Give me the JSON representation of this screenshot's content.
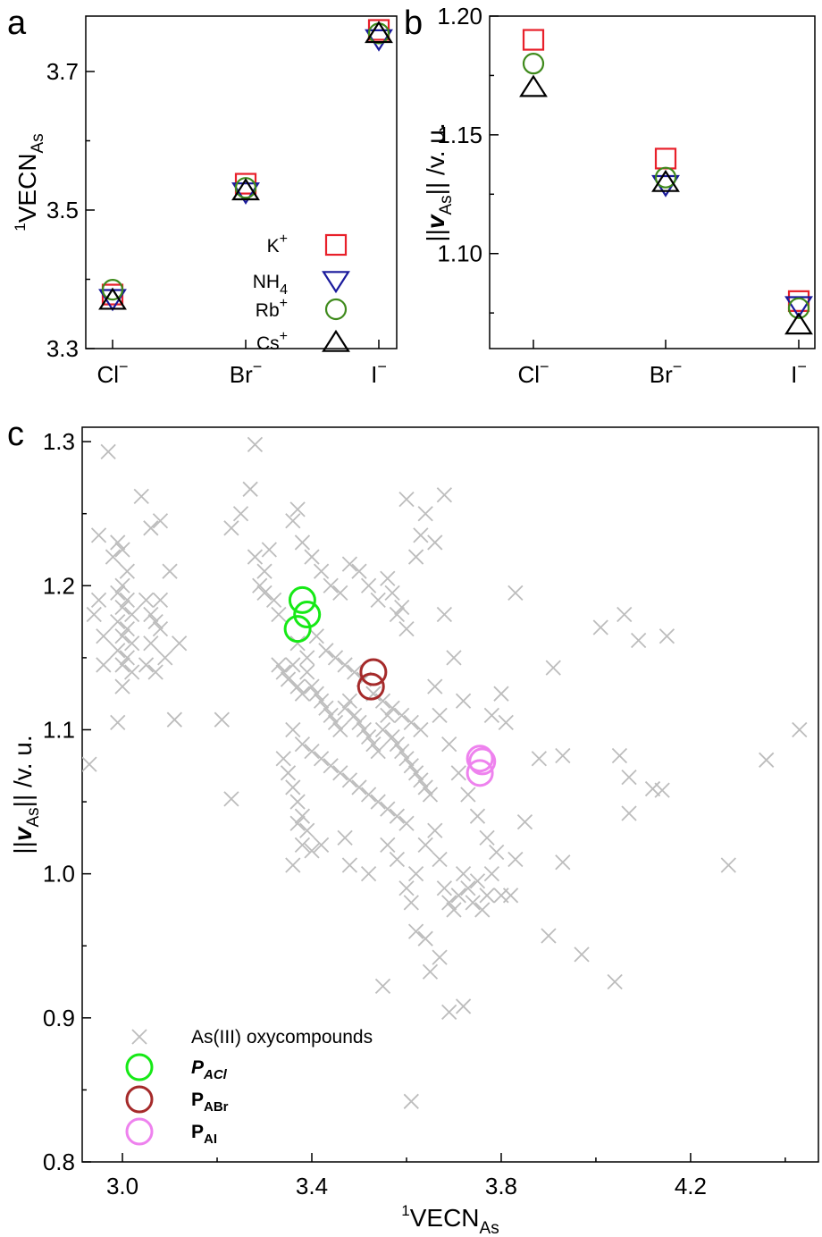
{
  "chart_data": [
    {
      "panel": "a",
      "type": "scatter",
      "categories": [
        "Cl⁻",
        "Br⁻",
        "I⁻"
      ],
      "ylabel": {
        "prefix": "1",
        "main": "VECN",
        "sub": "As"
      },
      "ylim": [
        3.3,
        3.78
      ],
      "yticks": [
        "3.3",
        "3.5",
        "3.7"
      ],
      "grid": false,
      "legend_position": "lower-right",
      "series": [
        {
          "name": "K",
          "sup": "+",
          "sub": "",
          "marker": "square",
          "color": "#e8202a",
          "values": [
            3.378,
            3.538,
            3.76
          ]
        },
        {
          "name": "NH",
          "sup": "",
          "sub": "4",
          "marker": "triangle-down",
          "color": "#1a1a9c",
          "values": [
            3.372,
            3.526,
            3.747
          ]
        },
        {
          "name": "Rb",
          "sup": "+",
          "sub": "",
          "marker": "circle",
          "color": "#3f8a1c",
          "values": [
            3.385,
            3.532,
            3.755
          ]
        },
        {
          "name": "Cs",
          "sup": "+",
          "sub": "",
          "marker": "triangle-up",
          "color": "#000000",
          "values": [
            3.37,
            3.528,
            3.755
          ]
        }
      ]
    },
    {
      "panel": "b",
      "type": "scatter",
      "categories": [
        "Cl⁻",
        "Br⁻",
        "I⁻"
      ],
      "ylabel": {
        "pre": "||",
        "bold_italic": "v",
        "sub": "As",
        "post": "||  /v. u."
      },
      "ylim": [
        1.06,
        1.2
      ],
      "yticks": [
        "1.10",
        "1.15",
        "1.20"
      ],
      "grid": false,
      "series": [
        {
          "name": "K",
          "marker": "square",
          "color": "#e8202a",
          "values": [
            1.19,
            1.14,
            1.08
          ]
        },
        {
          "name": "NH4",
          "marker": "triangle-down",
          "color": "#1a1a9c",
          "values": [
            null,
            1.129,
            1.078
          ]
        },
        {
          "name": "Rb",
          "marker": "circle",
          "color": "#3f8a1c",
          "values": [
            1.18,
            1.132,
            1.077
          ]
        },
        {
          "name": "Cs",
          "marker": "triangle-up",
          "color": "#000000",
          "values": [
            1.17,
            1.13,
            1.07
          ]
        }
      ]
    },
    {
      "panel": "c",
      "type": "scatter",
      "xlabel": {
        "prefix": "1",
        "main": "VECN",
        "sub": "As"
      },
      "ylabel": {
        "pre": "||",
        "bold_italic": "v",
        "sub": "As",
        "post": "||  /v. u."
      },
      "xlim": [
        2.915,
        4.47
      ],
      "ylim": [
        0.8,
        1.31
      ],
      "xticks": [
        "3.0",
        "3.4",
        "3.8",
        "4.2"
      ],
      "yticks": [
        "0.8",
        "0.9",
        "1.0",
        "1.1",
        "1.2",
        "1.3"
      ],
      "grid": false,
      "legend_position": "lower-left",
      "series": [
        {
          "name": "As(III) oxycompounds",
          "marker": "x",
          "color": "#bdbdbd",
          "points": [
            [
              2.97,
              1.293
            ],
            [
              2.95,
              1.235
            ],
            [
              2.98,
              1.22
            ],
            [
              2.99,
              1.23
            ],
            [
              3.0,
              1.225
            ],
            [
              3.01,
              1.21
            ],
            [
              3.0,
              1.2
            ],
            [
              2.99,
              1.195
            ],
            [
              3.01,
              1.19
            ],
            [
              3.0,
              1.185
            ],
            [
              3.02,
              1.18
            ],
            [
              2.99,
              1.175
            ],
            [
              3.01,
              1.17
            ],
            [
              3.0,
              1.165
            ],
            [
              3.02,
              1.16
            ],
            [
              2.99,
              1.155
            ],
            [
              3.01,
              1.15
            ],
            [
              3.0,
              1.145
            ],
            [
              3.02,
              1.14
            ],
            [
              3.0,
              1.13
            ],
            [
              2.96,
              1.165
            ],
            [
              2.95,
              1.19
            ],
            [
              2.94,
              1.18
            ],
            [
              2.96,
              1.145
            ],
            [
              2.93,
              1.076
            ],
            [
              2.99,
              1.105
            ],
            [
              3.05,
              1.19
            ],
            [
              3.06,
              1.18
            ],
            [
              3.07,
              1.175
            ],
            [
              3.08,
              1.17
            ],
            [
              3.05,
              1.145
            ],
            [
              3.07,
              1.14
            ],
            [
              3.09,
              1.15
            ],
            [
              3.06,
              1.16
            ],
            [
              3.1,
              1.21
            ],
            [
              3.08,
              1.245
            ],
            [
              3.04,
              1.262
            ],
            [
              3.06,
              1.24
            ],
            [
              3.12,
              1.16
            ],
            [
              3.08,
              1.19
            ],
            [
              3.11,
              1.107
            ],
            [
              3.21,
              1.107
            ],
            [
              3.23,
              1.052
            ],
            [
              3.23,
              1.24
            ],
            [
              3.25,
              1.25
            ],
            [
              3.27,
              1.267
            ],
            [
              3.28,
              1.298
            ],
            [
              3.28,
              1.22
            ],
            [
              3.29,
              1.2
            ],
            [
              3.3,
              1.21
            ],
            [
              3.31,
              1.225
            ],
            [
              3.32,
              1.19
            ],
            [
              3.33,
              1.18
            ],
            [
              3.3,
              1.195
            ],
            [
              3.36,
              1.245
            ],
            [
              3.37,
              1.253
            ],
            [
              3.38,
              1.23
            ],
            [
              3.4,
              1.22
            ],
            [
              3.42,
              1.21
            ],
            [
              3.44,
              1.2
            ],
            [
              3.46,
              1.195
            ],
            [
              3.48,
              1.215
            ],
            [
              3.5,
              1.21
            ],
            [
              3.52,
              1.2
            ],
            [
              3.54,
              1.19
            ],
            [
              3.56,
              1.205
            ],
            [
              3.58,
              1.18
            ],
            [
              3.6,
              1.17
            ],
            [
              3.62,
              1.22
            ],
            [
              3.63,
              1.235
            ],
            [
              3.64,
              1.25
            ],
            [
              3.66,
              1.23
            ],
            [
              3.68,
              1.263
            ],
            [
              3.6,
              1.26
            ],
            [
              3.57,
              1.195
            ],
            [
              3.59,
              1.185
            ],
            [
              3.33,
              1.145
            ],
            [
              3.34,
              1.14
            ],
            [
              3.35,
              1.135
            ],
            [
              3.36,
              1.145
            ],
            [
              3.37,
              1.13
            ],
            [
              3.38,
              1.125
            ],
            [
              3.39,
              1.14
            ],
            [
              3.4,
              1.13
            ],
            [
              3.41,
              1.125
            ],
            [
              3.42,
              1.12
            ],
            [
              3.43,
              1.115
            ],
            [
              3.44,
              1.11
            ],
            [
              3.45,
              1.105
            ],
            [
              3.46,
              1.1
            ],
            [
              3.47,
              1.115
            ],
            [
              3.48,
              1.12
            ],
            [
              3.49,
              1.11
            ],
            [
              3.5,
              1.105
            ],
            [
              3.51,
              1.1
            ],
            [
              3.52,
              1.095
            ],
            [
              3.53,
              1.09
            ],
            [
              3.54,
              1.085
            ],
            [
              3.55,
              1.1
            ],
            [
              3.56,
              1.11
            ],
            [
              3.57,
              1.095
            ],
            [
              3.58,
              1.09
            ],
            [
              3.59,
              1.085
            ],
            [
              3.6,
              1.08
            ],
            [
              3.61,
              1.075
            ],
            [
              3.62,
              1.07
            ],
            [
              3.63,
              1.065
            ],
            [
              3.64,
              1.06
            ],
            [
              3.65,
              1.055
            ],
            [
              3.36,
              1.1
            ],
            [
              3.38,
              1.09
            ],
            [
              3.4,
              1.085
            ],
            [
              3.42,
              1.08
            ],
            [
              3.44,
              1.075
            ],
            [
              3.46,
              1.07
            ],
            [
              3.48,
              1.065
            ],
            [
              3.5,
              1.06
            ],
            [
              3.52,
              1.055
            ],
            [
              3.54,
              1.05
            ],
            [
              3.56,
              1.045
            ],
            [
              3.58,
              1.04
            ],
            [
              3.6,
              1.035
            ],
            [
              3.37,
              1.16
            ],
            [
              3.39,
              1.15
            ],
            [
              3.41,
              1.165
            ],
            [
              3.43,
              1.155
            ],
            [
              3.45,
              1.15
            ],
            [
              3.47,
              1.145
            ],
            [
              3.49,
              1.14
            ],
            [
              3.51,
              1.135
            ],
            [
              3.53,
              1.125
            ],
            [
              3.55,
              1.12
            ],
            [
              3.57,
              1.115
            ],
            [
              3.59,
              1.11
            ],
            [
              3.61,
              1.105
            ],
            [
              3.63,
              1.1
            ],
            [
              3.35,
              1.07
            ],
            [
              3.36,
              1.06
            ],
            [
              3.37,
              1.05
            ],
            [
              3.38,
              1.04
            ],
            [
              3.39,
              1.03
            ],
            [
              3.37,
              1.035
            ],
            [
              3.34,
              1.08
            ],
            [
              3.38,
              1.02
            ],
            [
              3.36,
              1.006
            ],
            [
              3.42,
              1.02
            ],
            [
              3.47,
              1.025
            ],
            [
              3.52,
              1.0
            ],
            [
              3.56,
              1.02
            ],
            [
              3.58,
              1.01
            ],
            [
              3.6,
              0.99
            ],
            [
              3.61,
              0.98
            ],
            [
              3.62,
              1.0
            ],
            [
              3.64,
              1.02
            ],
            [
              3.66,
              1.03
            ],
            [
              3.67,
              1.01
            ],
            [
              3.68,
              0.99
            ],
            [
              3.69,
              0.98
            ],
            [
              3.7,
              0.975
            ],
            [
              3.71,
              0.985
            ],
            [
              3.72,
              1.0
            ],
            [
              3.73,
              0.99
            ],
            [
              3.74,
              0.98
            ],
            [
              3.75,
              0.995
            ],
            [
              3.76,
              0.975
            ],
            [
              3.77,
              0.985
            ],
            [
              3.78,
              1.0
            ],
            [
              3.8,
              0.985
            ],
            [
              3.82,
              0.985
            ],
            [
              3.83,
              1.01
            ],
            [
              3.79,
              1.015
            ],
            [
              3.77,
              1.025
            ],
            [
              3.75,
              1.04
            ],
            [
              3.73,
              1.055
            ],
            [
              3.71,
              1.07
            ],
            [
              3.69,
              1.09
            ],
            [
              3.67,
              1.11
            ],
            [
              3.66,
              1.13
            ],
            [
              3.68,
              1.18
            ],
            [
              3.7,
              1.15
            ],
            [
              3.72,
              1.12
            ],
            [
              3.78,
              1.11
            ],
            [
              3.8,
              1.125
            ],
            [
              3.81,
              1.105
            ],
            [
              3.83,
              1.195
            ],
            [
              3.85,
              1.036
            ],
            [
              3.88,
              1.08
            ],
            [
              3.9,
              0.957
            ],
            [
              3.91,
              1.143
            ],
            [
              3.93,
              1.082
            ],
            [
              3.93,
              1.008
            ],
            [
              3.97,
              0.944
            ],
            [
              4.01,
              1.171
            ],
            [
              4.04,
              0.925
            ],
            [
              4.05,
              1.082
            ],
            [
              4.06,
              1.18
            ],
            [
              4.07,
              1.067
            ],
            [
              4.07,
              1.042
            ],
            [
              4.09,
              1.162
            ],
            [
              4.12,
              1.059
            ],
            [
              4.14,
              1.058
            ],
            [
              4.15,
              1.165
            ],
            [
              4.28,
              1.006
            ],
            [
              4.36,
              1.079
            ],
            [
              4.43,
              1.1
            ],
            [
              3.67,
              0.942
            ],
            [
              3.69,
              0.904
            ],
            [
              3.72,
              0.908
            ],
            [
              3.65,
              0.932
            ],
            [
              3.55,
              0.922
            ],
            [
              3.61,
              0.842
            ],
            [
              3.62,
              0.96
            ],
            [
              3.64,
              0.955
            ],
            [
              3.48,
              1.006
            ],
            [
              3.4,
              1.016
            ]
          ]
        },
        {
          "name": "P",
          "sub": "ACl",
          "italic": true,
          "marker": "circle",
          "color": "#16e916",
          "points": [
            [
              3.38,
              1.19
            ],
            [
              3.39,
              1.18
            ],
            [
              3.37,
              1.17
            ]
          ]
        },
        {
          "name": "P",
          "sub": "ABr",
          "italic": false,
          "marker": "circle",
          "color": "#a52a2a",
          "points": [
            [
              3.53,
              1.14
            ],
            [
              3.525,
              1.13
            ]
          ]
        },
        {
          "name": "P",
          "sub": "AI",
          "italic": false,
          "marker": "circle",
          "color": "#ee82ee",
          "points": [
            [
              3.755,
              1.08
            ],
            [
              3.76,
              1.078
            ],
            [
              3.755,
              1.07
            ]
          ]
        }
      ]
    }
  ]
}
